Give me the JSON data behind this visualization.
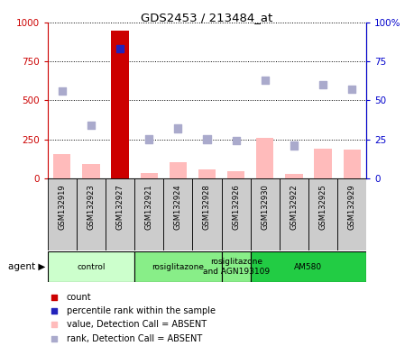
{
  "title": "GDS2453 / 213484_at",
  "samples": [
    "GSM132919",
    "GSM132923",
    "GSM132927",
    "GSM132921",
    "GSM132924",
    "GSM132928",
    "GSM132926",
    "GSM132930",
    "GSM132922",
    "GSM132925",
    "GSM132929"
  ],
  "bar_values": [
    155,
    90,
    950,
    35,
    100,
    55,
    45,
    260,
    30,
    190,
    185
  ],
  "bar_colors": [
    "#ffbbbb",
    "#ffbbbb",
    "#cc0000",
    "#ffbbbb",
    "#ffbbbb",
    "#ffbbbb",
    "#ffbbbb",
    "#ffbbbb",
    "#ffbbbb",
    "#ffbbbb",
    "#ffbbbb"
  ],
  "rank_values": [
    56,
    34,
    83,
    25,
    32,
    25,
    24,
    63,
    21,
    60,
    57
  ],
  "rank_colors": [
    "#aaaacc",
    "#aaaacc",
    "#2222bb",
    "#aaaacc",
    "#aaaacc",
    "#aaaacc",
    "#aaaacc",
    "#aaaacc",
    "#aaaacc",
    "#aaaacc",
    "#aaaacc"
  ],
  "ylim_left": [
    0,
    1000
  ],
  "ylim_right": [
    0,
    100
  ],
  "yticks_left": [
    0,
    250,
    500,
    750,
    1000
  ],
  "yticks_right": [
    0,
    25,
    50,
    75,
    100
  ],
  "ytick_labels_left": [
    "0",
    "250",
    "500",
    "750",
    "1000"
  ],
  "ytick_labels_right": [
    "0",
    "25",
    "50",
    "75",
    "100%"
  ],
  "groups": [
    {
      "label": "control",
      "start": 0,
      "end": 3,
      "color": "#ccffcc"
    },
    {
      "label": "rosiglitazone",
      "start": 3,
      "end": 6,
      "color": "#88ee88"
    },
    {
      "label": "rosiglitazone\nand AGN193109",
      "start": 6,
      "end": 7,
      "color": "#88ee88"
    },
    {
      "label": "AM580",
      "start": 7,
      "end": 11,
      "color": "#22cc44"
    }
  ],
  "left_axis_color": "#cc0000",
  "right_axis_color": "#0000cc",
  "bar_width": 0.6,
  "rank_marker_size": 35,
  "sample_box_color": "#cccccc",
  "legend_items": [
    {
      "color": "#cc0000",
      "label": "count"
    },
    {
      "color": "#2222bb",
      "label": "percentile rank within the sample"
    },
    {
      "color": "#ffbbbb",
      "label": "value, Detection Call = ABSENT"
    },
    {
      "color": "#aaaacc",
      "label": "rank, Detection Call = ABSENT"
    }
  ]
}
